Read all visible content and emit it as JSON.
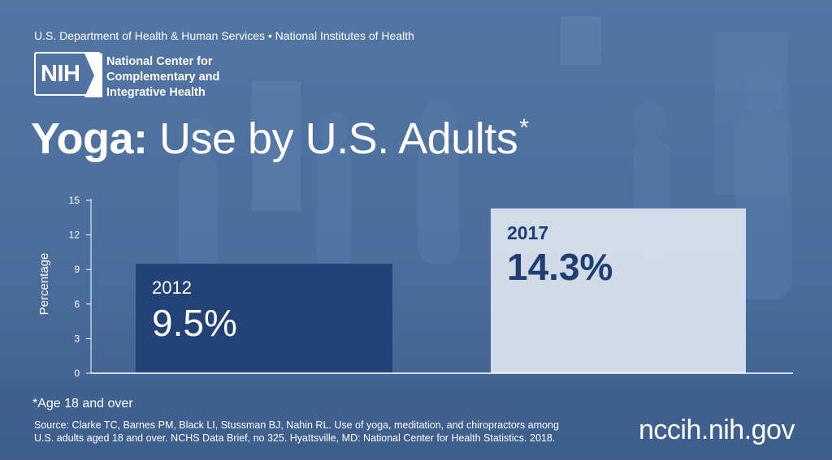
{
  "header": {
    "agency_line": "U.S. Department of Health & Human Services • National Institutes of Health",
    "logo_text": "NIH",
    "center_name_lines": [
      "National Center for",
      "Complementary and",
      "Integrative Health"
    ]
  },
  "title": {
    "bold": "Yoga:",
    "regular": "Use by U.S. Adults",
    "marker": "*"
  },
  "chart_data": {
    "type": "bar",
    "categories": [
      "2012",
      "2017"
    ],
    "values": [
      9.5,
      14.3
    ],
    "value_labels": [
      "9.5%",
      "14.3%"
    ],
    "ylabel": "Percentage",
    "ylim": [
      0,
      15
    ],
    "yticks": [
      0,
      3,
      6,
      9,
      12,
      15
    ],
    "colors": [
      "#1f3f72",
      "#dde4ef"
    ],
    "label_colors": [
      "#ffffff",
      "#1f3f72"
    ]
  },
  "footer": {
    "footnote": "*Age 18 and over",
    "source_lines": [
      "Source: Clarke TC, Barnes PM, Black LI, Stussman BJ, Nahin RL. Use of yoga, meditation, and chiropractors among",
      "U.S. adults aged 18 and over. NCHS Data Brief, no 325. Hyattsville, MD: National Center for Health Statistics. 2018."
    ],
    "url": "nccih.nih.gov"
  }
}
